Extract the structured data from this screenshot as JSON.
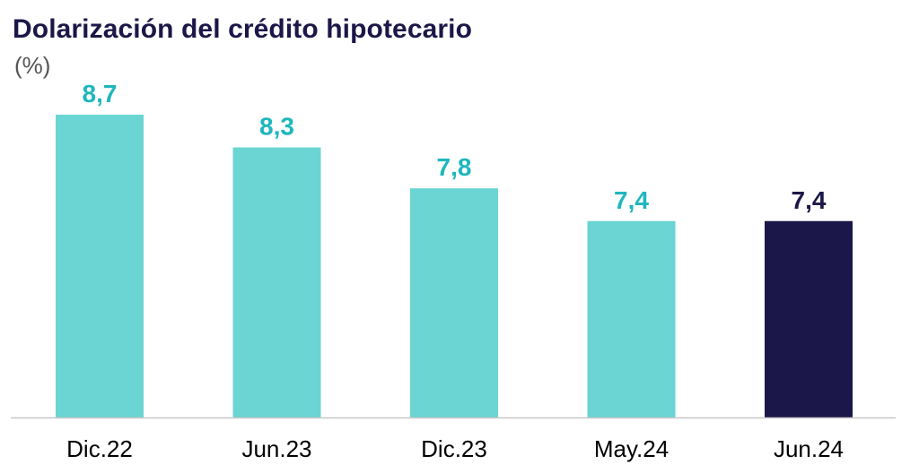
{
  "chart_data": {
    "type": "bar",
    "title": "Dolarización del crédito hipotecario",
    "subtitle": "(%)",
    "categories": [
      "Dic.22",
      "Jun.23",
      "Dic.23",
      "May.24",
      "Jun.24"
    ],
    "values": [
      8.7,
      8.3,
      7.8,
      7.4,
      7.4
    ],
    "value_labels": [
      "8,7",
      "8,3",
      "7,8",
      "7,4",
      "7,4"
    ],
    "ylim": [
      5,
      9
    ],
    "grid": false,
    "legend": "none",
    "colors": {
      "bar": "#6ad5d3",
      "bar_highlight": "#1b1748",
      "label": "#1fb6bd",
      "label_highlight": "#1b1748",
      "axis": "#c8c8c8"
    },
    "highlight_index": 4
  }
}
